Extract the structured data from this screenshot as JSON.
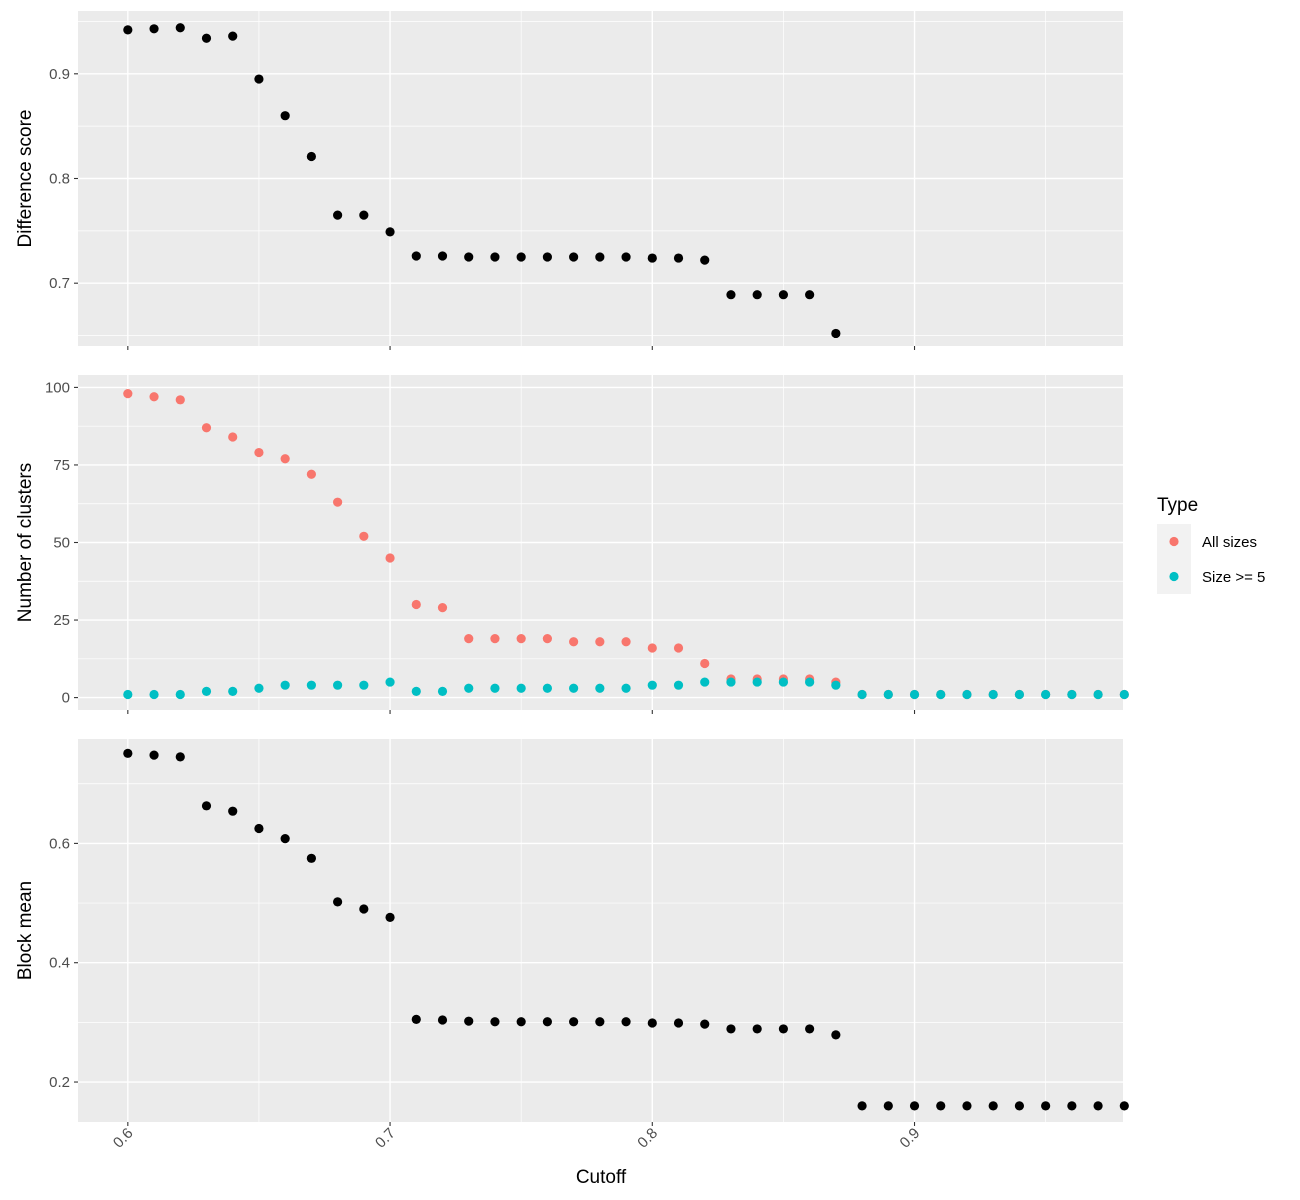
{
  "chart_data": [
    {
      "type": "scatter",
      "ylabel": "Difference score",
      "ylim": [
        0.64,
        0.96
      ],
      "yticks": [
        0.7,
        0.8,
        0.9
      ],
      "ytick_labels": [
        "0.7",
        "0.8",
        "0.9"
      ],
      "series": [
        {
          "color": "#000000",
          "x": [
            0.6,
            0.61,
            0.62,
            0.63,
            0.64,
            0.65,
            0.66,
            0.67,
            0.68,
            0.69,
            0.7,
            0.71,
            0.72,
            0.73,
            0.74,
            0.75,
            0.76,
            0.77,
            0.78,
            0.79,
            0.8,
            0.81,
            0.82,
            0.83,
            0.84,
            0.85,
            0.86,
            0.87
          ],
          "y": [
            0.942,
            0.943,
            0.944,
            0.934,
            0.936,
            0.895,
            0.86,
            0.821,
            0.765,
            0.765,
            0.749,
            0.726,
            0.726,
            0.725,
            0.725,
            0.725,
            0.725,
            0.725,
            0.725,
            0.725,
            0.724,
            0.724,
            0.722,
            0.689,
            0.689,
            0.689,
            0.689,
            0.652
          ]
        }
      ]
    },
    {
      "type": "scatter",
      "ylabel": "Number of clusters",
      "ylim": [
        -4,
        104
      ],
      "yticks": [
        0,
        25,
        50,
        75,
        100
      ],
      "ytick_labels": [
        "0",
        "25",
        "50",
        "75",
        "100"
      ],
      "series": [
        {
          "name": "All sizes",
          "color": "#f8766d",
          "x": [
            0.6,
            0.61,
            0.62,
            0.63,
            0.64,
            0.65,
            0.66,
            0.67,
            0.68,
            0.69,
            0.7,
            0.71,
            0.72,
            0.73,
            0.74,
            0.75,
            0.76,
            0.77,
            0.78,
            0.79,
            0.8,
            0.81,
            0.82,
            0.83,
            0.84,
            0.85,
            0.86,
            0.87,
            0.88,
            0.89,
            0.9,
            0.91,
            0.92,
            0.93,
            0.94,
            0.95,
            0.96,
            0.97,
            0.98
          ],
          "y": [
            98,
            97,
            96,
            87,
            84,
            79,
            77,
            72,
            63,
            52,
            45,
            30,
            29,
            19,
            19,
            19,
            19,
            18,
            18,
            18,
            16,
            16,
            11,
            6,
            6,
            6,
            6,
            5,
            1,
            1,
            1,
            1,
            1,
            1,
            1,
            1,
            1,
            1,
            1
          ]
        },
        {
          "name": "Size >= 5",
          "color": "#00bfc4",
          "x": [
            0.6,
            0.61,
            0.62,
            0.63,
            0.64,
            0.65,
            0.66,
            0.67,
            0.68,
            0.69,
            0.7,
            0.71,
            0.72,
            0.73,
            0.74,
            0.75,
            0.76,
            0.77,
            0.78,
            0.79,
            0.8,
            0.81,
            0.82,
            0.83,
            0.84,
            0.85,
            0.86,
            0.87,
            0.88,
            0.89,
            0.9,
            0.91,
            0.92,
            0.93,
            0.94,
            0.95,
            0.96,
            0.97,
            0.98
          ],
          "y": [
            1,
            1,
            1,
            2,
            2,
            3,
            4,
            4,
            4,
            4,
            5,
            2,
            2,
            3,
            3,
            3,
            3,
            3,
            3,
            3,
            4,
            4,
            5,
            5,
            5,
            5,
            5,
            4,
            1,
            1,
            1,
            1,
            1,
            1,
            1,
            1,
            1,
            1,
            1
          ]
        }
      ]
    },
    {
      "type": "scatter",
      "ylabel": "Block mean",
      "ylim": [
        0.133,
        0.775
      ],
      "yticks": [
        0.2,
        0.4,
        0.6
      ],
      "ytick_labels": [
        "0.2",
        "0.4",
        "0.6"
      ],
      "series": [
        {
          "color": "#000000",
          "x": [
            0.6,
            0.61,
            0.62,
            0.63,
            0.64,
            0.65,
            0.66,
            0.67,
            0.68,
            0.69,
            0.7,
            0.71,
            0.72,
            0.73,
            0.74,
            0.75,
            0.76,
            0.77,
            0.78,
            0.79,
            0.8,
            0.81,
            0.82,
            0.83,
            0.84,
            0.85,
            0.86,
            0.87,
            0.88,
            0.89,
            0.9,
            0.91,
            0.92,
            0.93,
            0.94,
            0.95,
            0.96,
            0.97,
            0.98
          ],
          "y": [
            0.751,
            0.748,
            0.745,
            0.663,
            0.654,
            0.625,
            0.608,
            0.575,
            0.502,
            0.49,
            0.476,
            0.305,
            0.304,
            0.302,
            0.301,
            0.301,
            0.301,
            0.301,
            0.301,
            0.301,
            0.299,
            0.299,
            0.297,
            0.289,
            0.289,
            0.289,
            0.289,
            0.279,
            0.16,
            0.16,
            0.16,
            0.16,
            0.16,
            0.16,
            0.16,
            0.16,
            0.16,
            0.16,
            0.16
          ]
        }
      ]
    }
  ],
  "shared_x": {
    "xlabel": "Cutoff",
    "xlim": [
      0.581,
      0.9795
    ],
    "xticks": [
      0.6,
      0.7,
      0.8,
      0.9
    ],
    "xtick_labels": [
      "0.6",
      "0.7",
      "0.8",
      "0.9"
    ]
  },
  "legend": {
    "title": "Type",
    "placement": "right",
    "items": [
      {
        "label": "All sizes",
        "color": "#f8766d"
      },
      {
        "label": "Size >= 5",
        "color": "#00bfc4"
      }
    ]
  }
}
